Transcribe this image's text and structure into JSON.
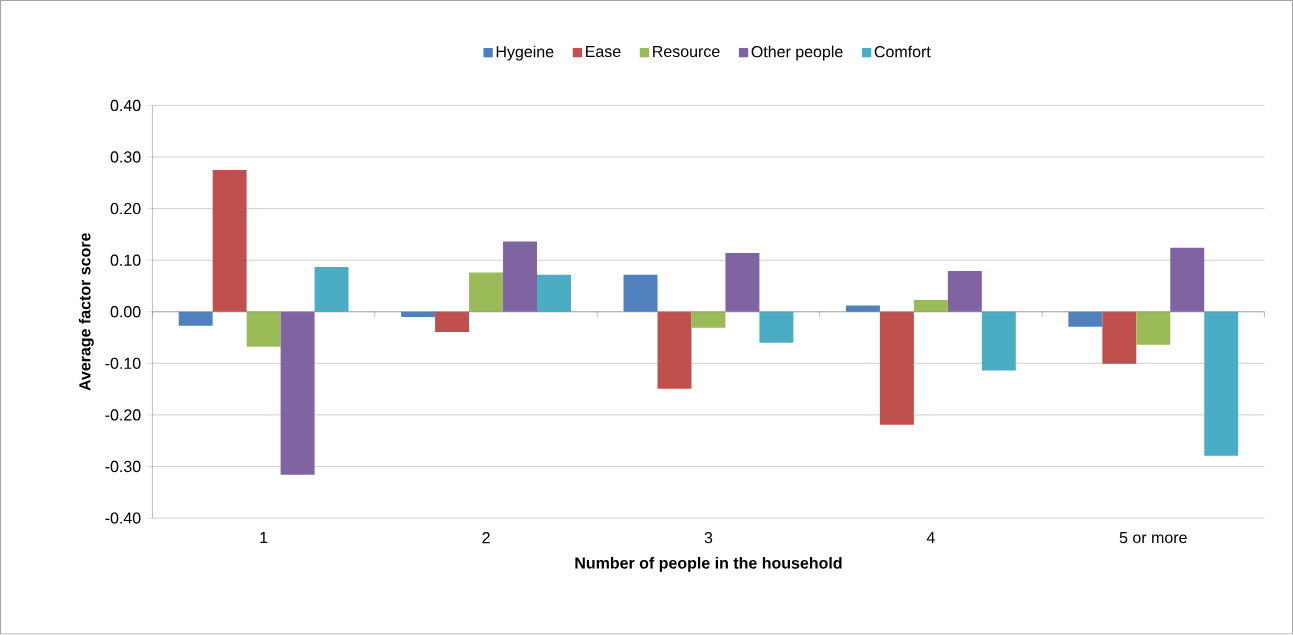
{
  "chart_data": {
    "type": "bar",
    "xlabel": "Number of people in the household",
    "ylabel": "Average factor score",
    "categories": [
      "1",
      "2",
      "3",
      "4",
      "5 or more"
    ],
    "series": [
      {
        "name": "Hygeine",
        "color": "#4f81bd",
        "values": [
          -0.027,
          -0.01,
          0.072,
          0.012,
          -0.029
        ]
      },
      {
        "name": "Ease",
        "color": "#c0504d",
        "values": [
          0.275,
          -0.039,
          -0.149,
          -0.219,
          -0.101
        ]
      },
      {
        "name": "Resource",
        "color": "#9bbb59",
        "values": [
          -0.068,
          0.076,
          -0.031,
          0.023,
          -0.064
        ]
      },
      {
        "name": "Other people",
        "color": "#8064a2",
        "values": [
          -0.316,
          0.136,
          0.114,
          0.079,
          0.124
        ]
      },
      {
        "name": "Comfort",
        "color": "#4bacc6",
        "values": [
          0.087,
          0.072,
          -0.06,
          -0.114,
          -0.279
        ]
      }
    ],
    "ylim": [
      -0.4,
      0.4
    ],
    "yticks": [
      {
        "value": -0.4,
        "label": "-0.40"
      },
      {
        "value": -0.3,
        "label": "-0.30"
      },
      {
        "value": -0.2,
        "label": "-0.20"
      },
      {
        "value": -0.1,
        "label": "-0.10"
      },
      {
        "value": 0,
        "label": "0.00"
      },
      {
        "value": 0.1,
        "label": "0.10"
      },
      {
        "value": 0.2,
        "label": "0.20"
      },
      {
        "value": 0.3,
        "label": "0.30"
      },
      {
        "value": 0.4,
        "label": "0.40"
      }
    ],
    "grid": "y",
    "legend": "top"
  }
}
